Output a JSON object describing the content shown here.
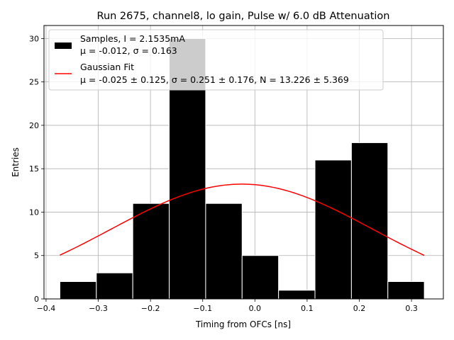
{
  "chart_data": {
    "type": "bar",
    "title": "Run 2675, channel8, lo gain, Pulse w/ 6.0 dB Attenuation",
    "xlabel": "Timing from OFCs [ns]",
    "ylabel": "Entries",
    "xlim": [
      -0.404,
      0.361
    ],
    "ylim": [
      0,
      31.5
    ],
    "grid": true,
    "xticks": [
      -0.4,
      -0.3,
      -0.2,
      -0.1,
      0.0,
      0.1,
      0.2,
      0.3
    ],
    "xtick_labels": [
      "−0.4",
      "−0.3",
      "−0.2",
      "−0.1",
      "0.0",
      "0.1",
      "0.2",
      "0.3"
    ],
    "yticks": [
      0,
      5,
      10,
      15,
      20,
      25,
      30
    ],
    "ytick_labels": [
      "0",
      "5",
      "10",
      "15",
      "20",
      "25",
      "30"
    ],
    "histogram": {
      "name": "Samples",
      "color": "#000000",
      "bin_edges": [
        -0.3735,
        -0.3037,
        -0.2339,
        -0.1641,
        -0.0943,
        -0.0245,
        0.0453,
        0.1151,
        0.1849,
        0.2547,
        0.3245
      ],
      "counts": [
        2,
        3,
        11,
        30,
        11,
        5,
        1,
        16,
        18,
        2
      ]
    },
    "fit": {
      "name": "Gaussian Fit",
      "color": "#ff0000",
      "mu": -0.025,
      "sigma": 0.251,
      "N": 13.226,
      "x_range": [
        -0.3735,
        0.3245
      ]
    },
    "legend": {
      "position": "top-left",
      "entries": [
        {
          "line1": "Samples, I = 2.1535mA",
          "line2": "μ = -0.012, σ = 0.163",
          "swatch": "box"
        },
        {
          "line1": "Gaussian Fit",
          "line2": "μ = -0.025 ± 0.125, σ = 0.251 ± 0.176, N = 13.226 ± 5.369",
          "swatch": "line"
        }
      ]
    }
  }
}
